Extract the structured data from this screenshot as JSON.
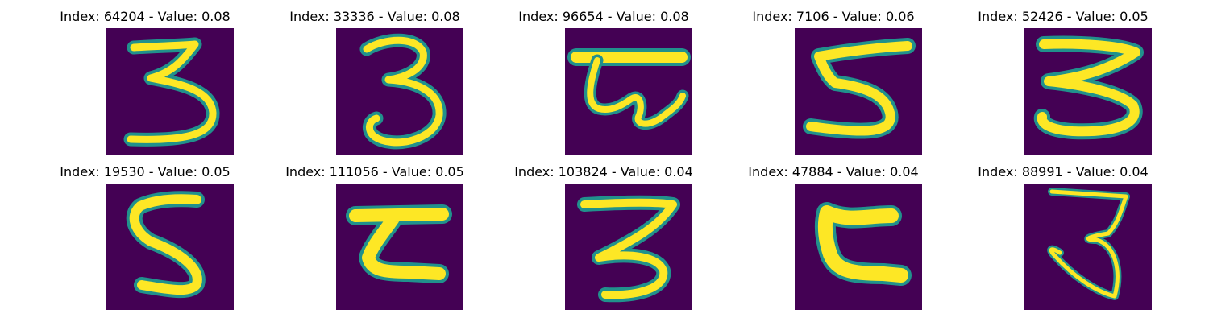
{
  "colormap": {
    "background": "#440154",
    "mid": "#21918c",
    "high": "#fde725"
  },
  "grid": {
    "rows": 2,
    "cols": 5,
    "items": [
      {
        "title": "Index: 64204 - Value: 0.08",
        "glyph": "digit-3"
      },
      {
        "title": "Index: 33336 - Value: 0.08",
        "glyph": "digit-3"
      },
      {
        "title": "Index: 96654 - Value: 0.08",
        "glyph": "character-with-top-bar"
      },
      {
        "title": "Index: 7106 - Value: 0.06",
        "glyph": "digit-5"
      },
      {
        "title": "Index: 52426 - Value: 0.05",
        "glyph": "digit-3"
      },
      {
        "title": "Index: 19530 - Value: 0.05",
        "glyph": "digit-5"
      },
      {
        "title": "Index: 111056 - Value: 0.05",
        "glyph": "character-z-shape"
      },
      {
        "title": "Index: 103824 - Value: 0.04",
        "glyph": "digit-3"
      },
      {
        "title": "Index: 47884 - Value: 0.04",
        "glyph": "character-c-shape"
      },
      {
        "title": "Index: 88991 - Value: 0.04",
        "glyph": "character-hooked-3"
      }
    ]
  }
}
